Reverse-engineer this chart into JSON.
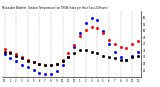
{
  "title": "Milwaukee Weather  Outdoor Temperature (vs) THSW Index per Hour (Last 24 Hours)",
  "background_color": "#ffffff",
  "x_hours": [
    0,
    1,
    2,
    3,
    4,
    5,
    6,
    7,
    8,
    9,
    10,
    11,
    12,
    13,
    14,
    15,
    16,
    17,
    18,
    19,
    20,
    21,
    22,
    23
  ],
  "temp_outdoor": [
    36,
    34,
    32,
    30,
    28,
    26,
    25,
    24,
    24,
    25,
    28,
    33,
    39,
    46,
    51,
    53,
    52,
    48,
    43,
    40,
    38,
    37,
    40,
    42
  ],
  "thsw_index": [
    32,
    29,
    27,
    24,
    22,
    20,
    18,
    17,
    17,
    19,
    24,
    30,
    38,
    48,
    56,
    60,
    58,
    50,
    40,
    34,
    30,
    28,
    31,
    34
  ],
  "dew_point": [
    34,
    33,
    31,
    29,
    27,
    26,
    25,
    24,
    24,
    25,
    27,
    30,
    33,
    35,
    35,
    34,
    33,
    31,
    30,
    29,
    28,
    28,
    30,
    31
  ],
  "temp_color": "#ff0000",
  "thsw_color": "#0000ff",
  "dew_color": "#000000",
  "y_min": 15,
  "y_max": 65,
  "y_ticks": [
    20,
    25,
    30,
    35,
    40,
    45,
    50,
    55,
    60
  ],
  "y_tick_labels": [
    "20",
    "25",
    "30",
    "35",
    "40",
    "45",
    "50",
    "55",
    "60"
  ],
  "x_tick_labels": [
    "12",
    "1",
    "2",
    "3",
    "4",
    "5",
    "6",
    "7",
    "8",
    "9",
    "10",
    "11",
    "12",
    "1",
    "2",
    "3",
    "4",
    "5",
    "6",
    "7",
    "8",
    "9",
    "10",
    "11"
  ]
}
